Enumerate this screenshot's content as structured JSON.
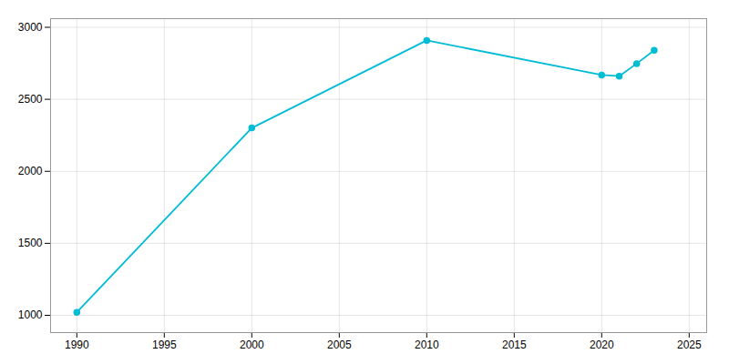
{
  "chart_data": {
    "type": "line",
    "x": [
      1990,
      2000,
      2010,
      2020,
      2021,
      2022,
      2023
    ],
    "values": [
      1021,
      2301,
      2909,
      2669,
      2661,
      2748,
      2840
    ],
    "color": "#00bcd4",
    "marker": "circle",
    "xlim": [
      1988.5,
      2026
    ],
    "ylim": [
      880,
      3060
    ],
    "xticks": [
      1990,
      1995,
      2000,
      2005,
      2010,
      2015,
      2020,
      2025
    ],
    "yticks": [
      1000,
      1500,
      2000,
      2500,
      3000
    ],
    "grid": true
  }
}
